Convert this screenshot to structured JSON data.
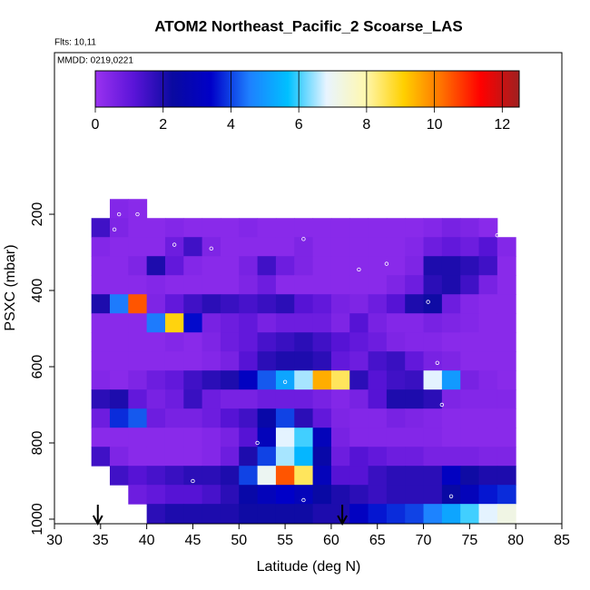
{
  "chart_data": {
    "type": "heatmap",
    "title": "ATOM2 Northeast_Pacific_2 Scoarse_LAS",
    "subtitle": "Flts: 10,11",
    "annotation": "MMDD: 0219,0221",
    "x_label": "Latitude (deg N)",
    "y_label": "PSXC (mbar)",
    "xlim": [
      30,
      85
    ],
    "xticks": [
      30,
      35,
      40,
      45,
      50,
      55,
      60,
      65,
      70,
      75,
      80,
      85
    ],
    "ylim": [
      1012,
      -224
    ],
    "yticks": [
      200,
      400,
      600,
      800,
      1000
    ],
    "zlim": [
      0,
      12.5
    ],
    "zticks": [
      0,
      2,
      4,
      6,
      8,
      10,
      12
    ],
    "colorscale": [
      "#9a32f0",
      "#5a14d8",
      "#0a0aa0",
      "#0000c8",
      "#1e80ff",
      "#00c0ff",
      "#e8f4ff",
      "#fff8b0",
      "#ffd000",
      "#ff7000",
      "#ff0000",
      "#a02020"
    ],
    "x_edges": [
      34,
      36,
      38,
      40,
      42,
      44,
      46,
      48,
      50,
      52,
      54,
      56,
      58,
      60,
      62,
      64,
      66,
      68,
      70,
      72,
      74,
      76,
      78,
      80
    ],
    "y_edges": [
      160,
      210,
      260,
      310,
      360,
      410,
      460,
      510,
      560,
      610,
      660,
      710,
      760,
      810,
      860,
      910,
      960,
      1010
    ],
    "values": [
      [
        null,
        0.4,
        0.3,
        null,
        null,
        null,
        null,
        null,
        null,
        null,
        null,
        null,
        null,
        null,
        null,
        null,
        null,
        null,
        null,
        null,
        null,
        null,
        null
      ],
      [
        1.5,
        0.5,
        0.3,
        0.3,
        0.4,
        0.3,
        0.3,
        0.3,
        0.4,
        0.3,
        0.3,
        0.3,
        0.3,
        0.3,
        0.3,
        0.3,
        0.3,
        0.3,
        0.4,
        0.6,
        0.5,
        0.3,
        null
      ],
      [
        0.4,
        0.3,
        0.3,
        0.3,
        0.8,
        1.5,
        0.5,
        0.3,
        0.3,
        0.3,
        0.3,
        0.5,
        0.3,
        0.3,
        0.3,
        0.3,
        0.3,
        0.4,
        0.8,
        1.0,
        0.8,
        1.2,
        0.4
      ],
      [
        0.3,
        0.3,
        0.5,
        2.0,
        1.0,
        0.4,
        0.3,
        0.3,
        0.6,
        1.5,
        0.8,
        0.5,
        0.3,
        0.3,
        0.3,
        0.3,
        0.3,
        0.5,
        2.0,
        2.0,
        1.8,
        1.5,
        0.3
      ],
      [
        0.3,
        0.3,
        0.3,
        0.4,
        0.3,
        0.3,
        0.3,
        0.3,
        0.5,
        0.8,
        0.3,
        0.3,
        0.3,
        0.3,
        0.3,
        0.3,
        0.5,
        0.8,
        1.8,
        2.0,
        1.5,
        0.6,
        0.3
      ],
      [
        2.0,
        4.5,
        10.5,
        0.5,
        1.0,
        1.5,
        1.8,
        1.6,
        1.4,
        1.6,
        1.8,
        1.2,
        1.0,
        0.6,
        0.5,
        0.8,
        1.2,
        2.0,
        2.2,
        0.8,
        0.4,
        0.3,
        0.3
      ],
      [
        0.3,
        0.3,
        0.3,
        4.5,
        9.0,
        3.5,
        0.6,
        0.8,
        1.0,
        0.6,
        0.8,
        0.8,
        0.8,
        0.5,
        1.2,
        0.6,
        0.4,
        0.4,
        0.6,
        0.5,
        0.4,
        0.3,
        0.3
      ],
      [
        0.3,
        0.3,
        0.3,
        0.3,
        0.4,
        0.3,
        0.5,
        0.8,
        1.0,
        1.4,
        1.6,
        1.8,
        1.5,
        1.2,
        1.0,
        0.8,
        0.5,
        0.4,
        0.4,
        0.3,
        0.3,
        0.3,
        0.3
      ],
      [
        0.3,
        0.3,
        0.3,
        0.3,
        0.3,
        0.3,
        0.4,
        0.6,
        1.2,
        1.8,
        2.0,
        2.0,
        1.8,
        1.0,
        0.8,
        1.4,
        1.6,
        1.0,
        0.6,
        0.5,
        0.3,
        0.3,
        0.3
      ],
      [
        0.4,
        0.3,
        0.5,
        0.8,
        1.0,
        1.5,
        1.8,
        2.0,
        3.2,
        4.2,
        5.2,
        6.5,
        9.5,
        8.5,
        1.8,
        1.2,
        1.5,
        1.6,
        6.8,
        5.0,
        0.6,
        0.4,
        0.3
      ],
      [
        1.8,
        2.0,
        1.0,
        0.6,
        0.8,
        1.6,
        0.8,
        0.6,
        0.6,
        0.8,
        0.8,
        0.8,
        0.6,
        0.4,
        0.6,
        1.2,
        2.0,
        2.0,
        1.8,
        0.5,
        0.4,
        0.4,
        0.4
      ],
      [
        0.8,
        3.8,
        4.2,
        0.8,
        0.6,
        0.6,
        0.8,
        1.2,
        1.5,
        2.5,
        4.0,
        1.8,
        1.0,
        0.5,
        0.4,
        0.4,
        0.6,
        0.5,
        0.4,
        0.3,
        0.3,
        0.3,
        0.3
      ],
      [
        0.3,
        0.3,
        0.3,
        0.3,
        0.3,
        0.3,
        0.4,
        0.6,
        1.2,
        3.0,
        6.8,
        6.0,
        3.0,
        0.6,
        0.4,
        0.4,
        0.4,
        0.4,
        0.4,
        0.3,
        0.3,
        0.3,
        0.3
      ],
      [
        1.5,
        0.5,
        0.3,
        0.3,
        0.3,
        0.3,
        0.4,
        0.8,
        2.0,
        4.0,
        6.5,
        5.5,
        2.5,
        0.8,
        1.2,
        1.0,
        0.8,
        0.8,
        0.6,
        0.6,
        0.6,
        0.5,
        0.5
      ],
      [
        null,
        1.5,
        1.2,
        1.4,
        1.6,
        1.8,
        1.8,
        2.0,
        4.0,
        7.0,
        10.5,
        8.5,
        3.0,
        1.2,
        1.2,
        1.6,
        1.8,
        1.8,
        1.8,
        3.2,
        2.2,
        2.0,
        2.0
      ],
      [
        null,
        null,
        0.8,
        1.0,
        1.2,
        1.2,
        1.4,
        1.8,
        2.5,
        3.0,
        3.4,
        3.0,
        2.4,
        2.0,
        1.8,
        1.6,
        1.8,
        1.8,
        1.8,
        2.4,
        3.0,
        3.6,
        3.8
      ],
      [
        null,
        null,
        null,
        1.8,
        2.0,
        2.0,
        2.0,
        2.0,
        2.2,
        2.2,
        2.2,
        2.2,
        2.0,
        2.0,
        3.2,
        3.6,
        3.8,
        4.0,
        4.6,
        5.2,
        6.0,
        6.8,
        7.2
      ]
    ],
    "track": {
      "x": [
        36.5,
        37,
        39,
        43,
        47,
        57,
        63,
        66,
        70.5,
        71.5,
        72,
        73,
        78,
        55,
        52,
        45,
        57
      ],
      "y": [
        240,
        200,
        200,
        280,
        290,
        265,
        345,
        330,
        430,
        590,
        700,
        940,
        255,
        640,
        800,
        900,
        950
      ]
    },
    "arrows_x": [
      34.7,
      61.2
    ]
  }
}
